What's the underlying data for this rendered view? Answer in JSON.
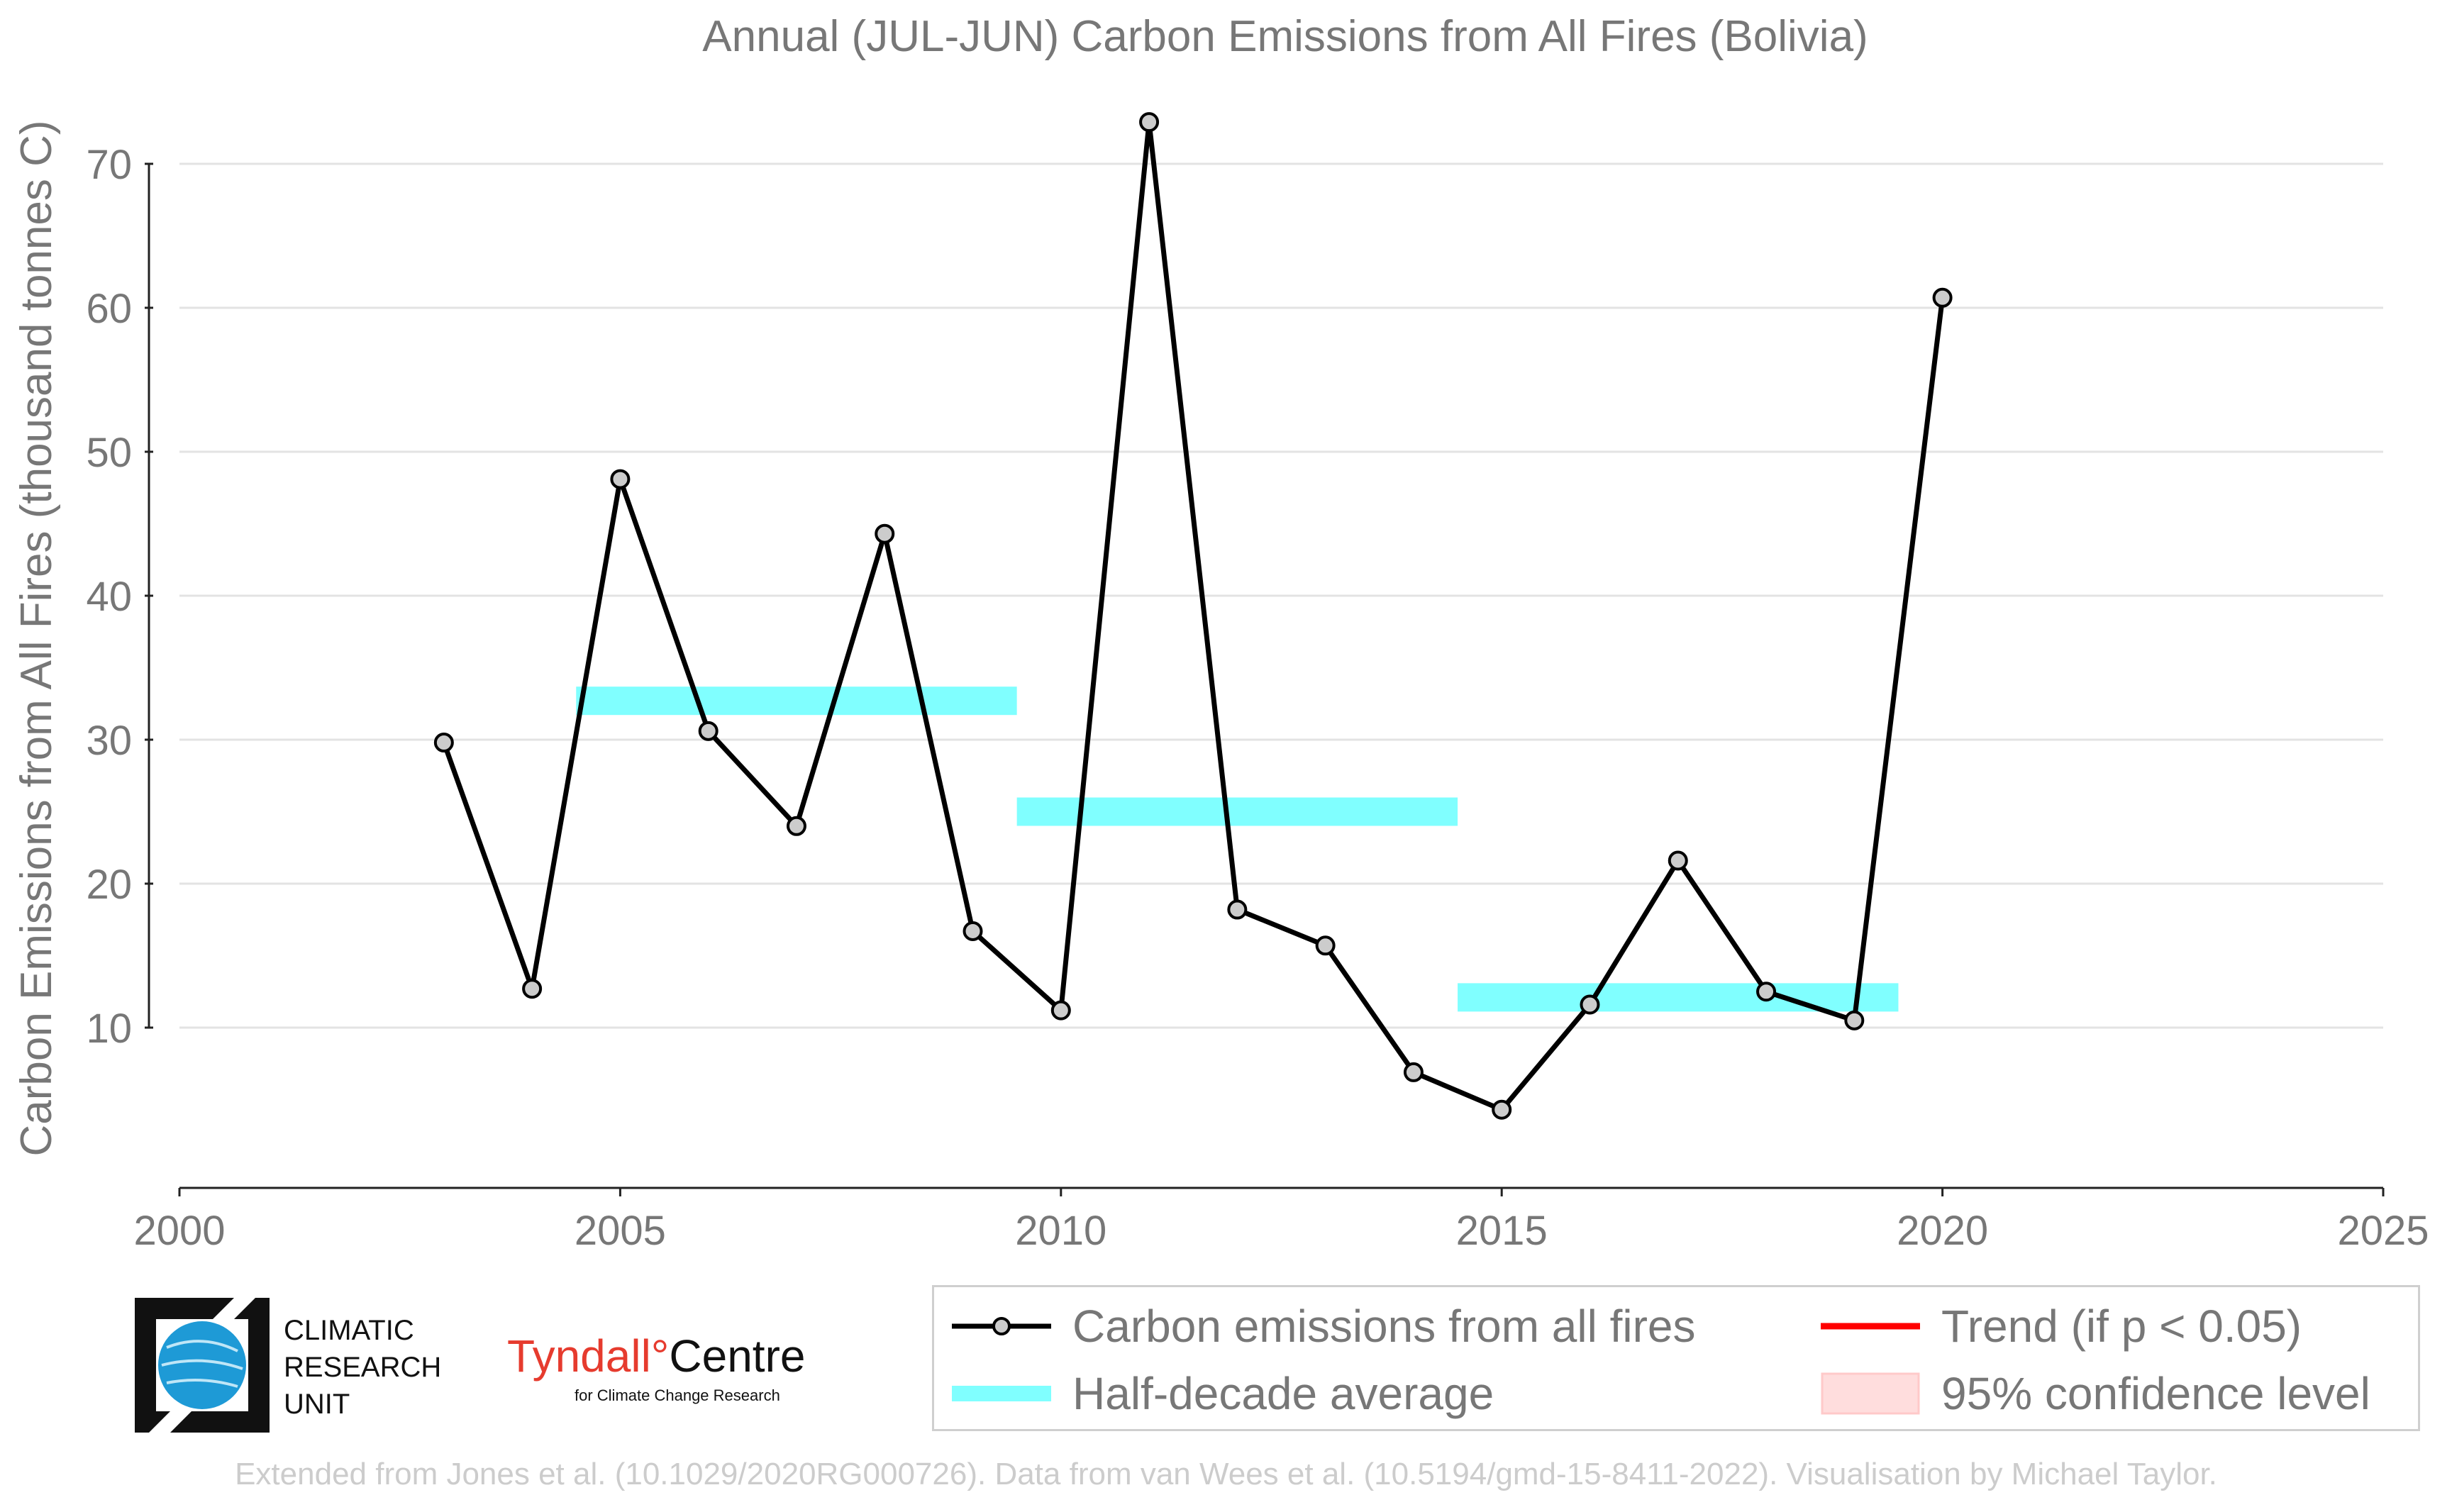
{
  "chart_data": {
    "type": "line",
    "title": "Annual (JUL-JUN) Carbon Emissions from All Fires (Bolivia)",
    "ylabel": "Carbon Emissions from All Fires (thousand tonnes C)",
    "xlabel": "",
    "xlim": [
      2000,
      2025
    ],
    "ylim": [
      0,
      73
    ],
    "x_ticks": [
      2000,
      2005,
      2010,
      2015,
      2020,
      2025
    ],
    "y_ticks": [
      10,
      20,
      30,
      40,
      50,
      60,
      70
    ],
    "grid": "horizontal",
    "series": [
      {
        "name": "Carbon emissions from all fires",
        "color": "#000000",
        "marker_fill": "#cccccc",
        "x": [
          2003,
          2004,
          2005,
          2006,
          2007,
          2008,
          2009,
          2010,
          2011,
          2012,
          2013,
          2014,
          2015,
          2016,
          2017,
          2018,
          2019,
          2020
        ],
        "y": [
          29.8,
          12.7,
          48.1,
          30.6,
          24.0,
          44.3,
          16.7,
          11.2,
          72.9,
          18.2,
          15.7,
          6.9,
          4.3,
          11.6,
          21.6,
          12.5,
          10.5,
          60.7
        ]
      }
    ],
    "half_decade_averages": {
      "name": "Half-decade average",
      "color": "#80ffff",
      "segments": [
        {
          "x_start": 2004.5,
          "x_end": 2009.5,
          "value": 32.7
        },
        {
          "x_start": 2009.5,
          "x_end": 2014.5,
          "value": 25.0
        },
        {
          "x_start": 2014.5,
          "x_end": 2019.5,
          "value": 12.1
        }
      ]
    },
    "legend": {
      "placement": "bottom-right",
      "entries": [
        {
          "label": "Carbon emissions from all fires",
          "kind": "line-marker",
          "color": "#000000"
        },
        {
          "label": "Trend (if p < 0.05)",
          "kind": "line",
          "color": "#ff0000"
        },
        {
          "label": "Half-decade average",
          "kind": "bar",
          "color": "#80ffff"
        },
        {
          "label": "95% confidence level",
          "kind": "patch",
          "color": "#ffdddd"
        }
      ]
    }
  },
  "logos": {
    "cru_lines": [
      "CLIMATIC",
      "RESEARCH",
      "UNIT"
    ],
    "tyndall_name": "Tyndall",
    "tyndall_degree": "°",
    "tyndall_centre": "Centre",
    "tyndall_sub": "for Climate Change Research"
  },
  "footer": "Extended from Jones et al. (10.1029/2020RG000726). Data from van Wees et al. (10.5194/gmd-15-8411-2022). Visualisation by Michael Taylor."
}
